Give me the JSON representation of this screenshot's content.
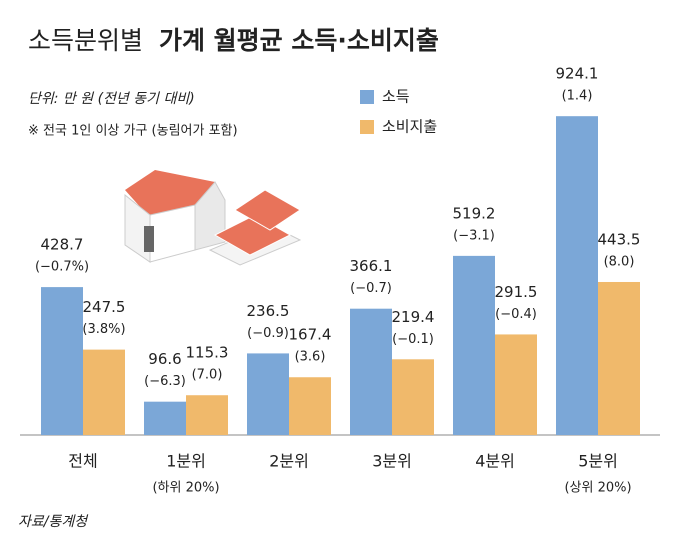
{
  "chart_data": {
    "type": "bar",
    "title": [
      "소득분위별",
      "가계 월평균 소득·소비지출"
    ],
    "subtitle": "단위: 만 원 (전년 동기 대비)",
    "note": "※ 전국 1인 이상 가구 (농림어가 포함)",
    "source": "자료/통계청",
    "categories": [
      "전체",
      "1분위",
      "2분위",
      "3분위",
      "4분위",
      "5분위"
    ],
    "category_notes": [
      null,
      "(하위 20%)",
      null,
      null,
      null,
      "(상위 20%)"
    ],
    "series": [
      {
        "name": "소득",
        "color": "#7ba7d7",
        "label_color": "#2f74c0",
        "values": [
          428.7,
          96.6,
          236.5,
          366.1,
          519.2,
          924.1
        ],
        "change_labels": [
          "(−0.7%)",
          "(−6.3)",
          "(−0.9)",
          "(−0.7)",
          "(−3.1)",
          "(1.4)"
        ]
      },
      {
        "name": "소비지출",
        "color": "#f0b96b",
        "label_color": "#e09a35",
        "values": [
          247.5,
          115.3,
          167.4,
          219.4,
          291.5,
          443.5
        ],
        "change_labels": [
          "(3.8%)",
          "(7.0)",
          "(3.6)",
          "(−0.1)",
          "(−0.4)",
          "(8.0)"
        ]
      }
    ]
  }
}
